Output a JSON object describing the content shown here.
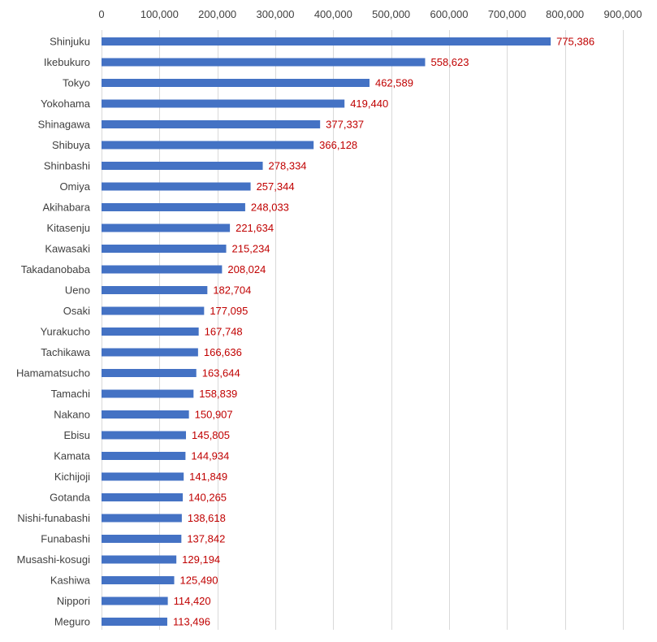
{
  "chart_data": {
    "type": "bar",
    "orientation": "horizontal",
    "title": "",
    "xlabel": "",
    "ylabel": "",
    "xlim": [
      0,
      900000
    ],
    "tick_step": 100000,
    "x_ticks": [
      "0",
      "100,000",
      "200,000",
      "300,000",
      "400,000",
      "500,000",
      "600,000",
      "700,000",
      "800,000",
      "900,000"
    ],
    "axis_position": "top",
    "grid": true,
    "legend": "none",
    "bar_color": "#4472c4",
    "label_color": "#c00000",
    "categories": [
      "Shinjuku",
      "Ikebukuro",
      "Tokyo",
      "Yokohama",
      "Shinagawa",
      "Shibuya",
      "Shinbashi",
      "Omiya",
      "Akihabara",
      "Kitasenju",
      "Kawasaki",
      "Takadanobaba",
      "Ueno",
      "Osaki",
      "Yurakucho",
      "Tachikawa",
      "Hamamatsucho",
      "Tamachi",
      "Nakano",
      "Ebisu",
      "Kamata",
      "Kichijoji",
      "Gotanda",
      "Nishi-funabashi",
      "Funabashi",
      "Musashi-kosugi",
      "Kashiwa",
      "Nippori",
      "Meguro"
    ],
    "values": [
      775386,
      558623,
      462589,
      419440,
      377337,
      366128,
      278334,
      257344,
      248033,
      221634,
      215234,
      208024,
      182704,
      177095,
      167748,
      166636,
      163644,
      158839,
      150907,
      145805,
      144934,
      141849,
      140265,
      138618,
      137842,
      129194,
      125490,
      114420,
      113496
    ],
    "value_labels": [
      "775,386",
      "558,623",
      "462,589",
      "419,440",
      "377,337",
      "366,128",
      "278,334",
      "257,344",
      "248,033",
      "221,634",
      "215,234",
      "208,024",
      "182,704",
      "177,095",
      "167,748",
      "166,636",
      "163,644",
      "158,839",
      "150,907",
      "145,805",
      "144,934",
      "141,849",
      "140,265",
      "138,618",
      "137,842",
      "129,194",
      "125,490",
      "114,420",
      "113,496"
    ]
  }
}
